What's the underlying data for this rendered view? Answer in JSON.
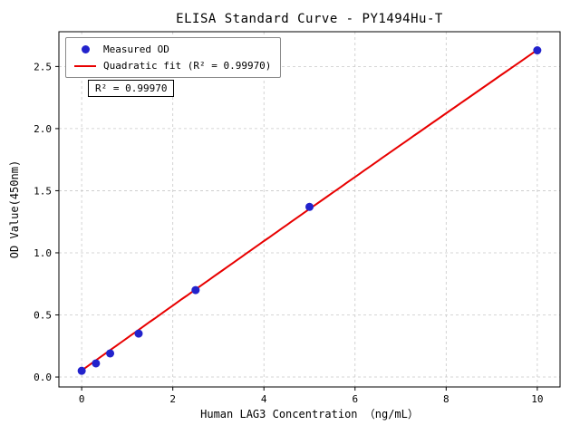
{
  "chart_data": {
    "type": "scatter",
    "title": "ELISA Standard Curve - PY1494Hu-T",
    "xlabel": "Human LAG3 Concentration （ng/mL）",
    "ylabel": "OD Value(450nm)",
    "xlim": [
      -0.5,
      10.5
    ],
    "ylim": [
      -0.08,
      2.78
    ],
    "xticks": [
      0,
      2,
      4,
      6,
      8,
      10
    ],
    "xtick_labels": [
      "0",
      "2",
      "4",
      "6",
      "8",
      "10"
    ],
    "yticks": [
      0,
      0.5,
      1,
      1.5,
      2,
      2.5
    ],
    "ytick_labels": [
      "0.0",
      "0.5",
      "1.0",
      "1.5",
      "2.0",
      "2.5"
    ],
    "grid": true,
    "grid_color": "#c8c8c8",
    "axis_color": "#000000",
    "legend_position": "upper left",
    "annotation": "R² = 0.99970",
    "series": [
      {
        "name": "Measured OD",
        "type": "scatter",
        "color": "#2222cc",
        "x": [
          0,
          0.313,
          0.625,
          1.25,
          2.5,
          5,
          10
        ],
        "y": [
          0.05,
          0.11,
          0.19,
          0.35,
          0.7,
          1.37,
          2.63
        ]
      },
      {
        "name": "Quadratic fit (R² = 0.99970)",
        "type": "line",
        "color": "#e80000",
        "x_range": [
          0,
          10
        ],
        "fit": {
          "c0": 0.053,
          "c1": 0.262,
          "c2": -0.0004
        },
        "r_squared": 0.9997
      }
    ]
  }
}
